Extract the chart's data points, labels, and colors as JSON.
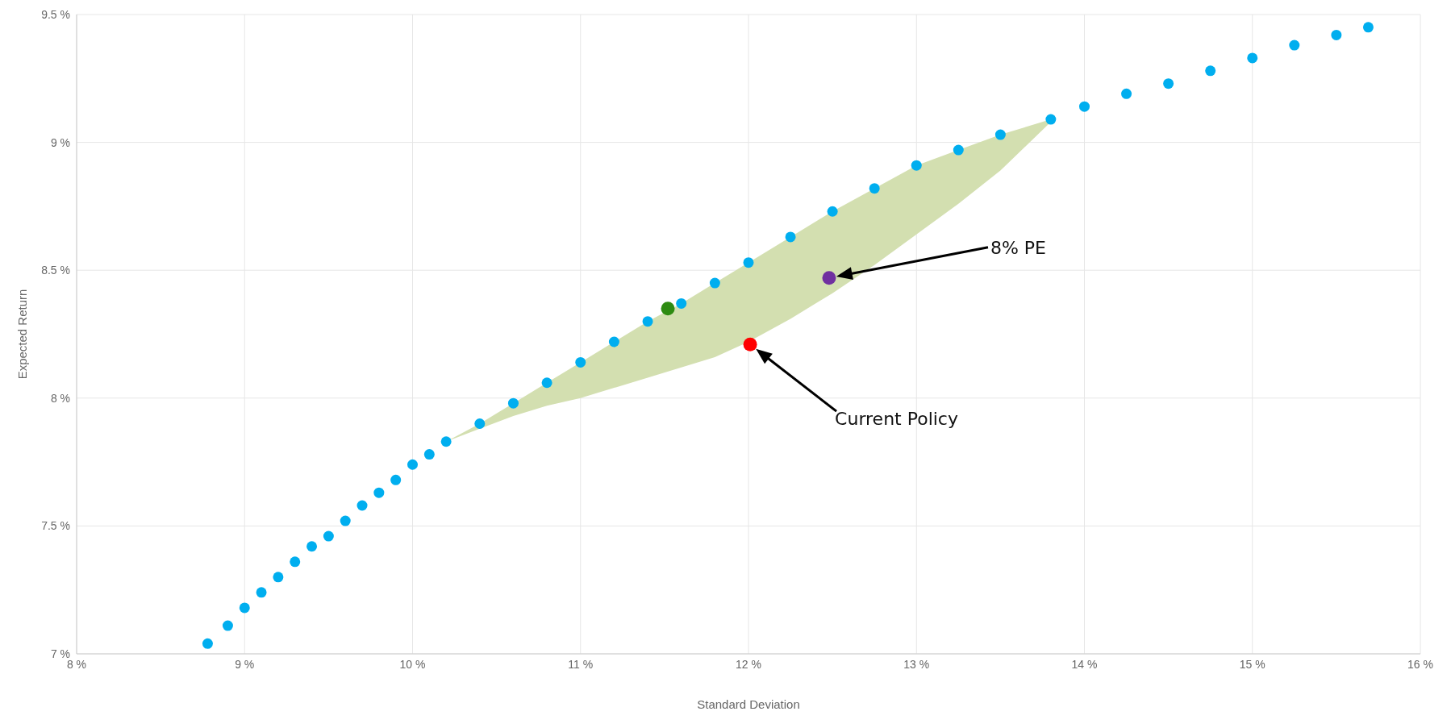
{
  "chart_data": {
    "type": "scatter",
    "xlabel": "Standard Deviation",
    "ylabel": "Expected Return",
    "xlim": [
      8,
      16
    ],
    "ylim": [
      7,
      9.5
    ],
    "xticks": [
      {
        "value": 8,
        "label": "8 %"
      },
      {
        "value": 9,
        "label": "9 %"
      },
      {
        "value": 10,
        "label": "10 %"
      },
      {
        "value": 11,
        "label": "11 %"
      },
      {
        "value": 12,
        "label": "12 %"
      },
      {
        "value": 13,
        "label": "13 %"
      },
      {
        "value": 14,
        "label": "14 %"
      },
      {
        "value": 15,
        "label": "15 %"
      },
      {
        "value": 16,
        "label": "16 %"
      }
    ],
    "yticks": [
      {
        "value": 7,
        "label": "7 %"
      },
      {
        "value": 7.5,
        "label": "7.5 %"
      },
      {
        "value": 8,
        "label": "8 %"
      },
      {
        "value": 8.5,
        "label": "8.5 %"
      },
      {
        "value": 9,
        "label": "9 %"
      },
      {
        "value": 9.5,
        "label": "9.5 %"
      }
    ],
    "grid": true,
    "marker": "circle",
    "series": [
      {
        "color": "#00aeef",
        "x": [
          8.78,
          8.9,
          9.0,
          9.1,
          9.2,
          9.3,
          9.4,
          9.5,
          9.6,
          9.7,
          9.8,
          9.9,
          10.0,
          10.1,
          10.2,
          10.4,
          10.6,
          10.8,
          11.0,
          11.2,
          11.4,
          11.6,
          11.8,
          12.0,
          12.25,
          12.5,
          12.75,
          13.0,
          13.25,
          13.5,
          13.8,
          14.0,
          14.25,
          14.5,
          14.75,
          15.0,
          15.25,
          15.5,
          15.69
        ],
        "values": [
          7.04,
          7.11,
          7.18,
          7.24,
          7.3,
          7.36,
          7.42,
          7.46,
          7.52,
          7.58,
          7.63,
          7.68,
          7.74,
          7.78,
          7.83,
          7.9,
          7.98,
          8.06,
          8.14,
          8.22,
          8.3,
          8.37,
          8.45,
          8.53,
          8.63,
          8.73,
          8.82,
          8.91,
          8.97,
          9.03,
          9.09,
          9.14,
          9.19,
          9.23,
          9.28,
          9.33,
          9.38,
          9.42,
          9.45
        ],
        "lower": [
          null,
          null,
          null,
          null,
          null,
          null,
          null,
          null,
          null,
          null,
          null,
          null,
          null,
          null,
          7.83,
          7.88,
          7.93,
          7.97,
          8.0,
          8.04,
          8.08,
          8.12,
          8.16,
          8.22,
          8.31,
          8.41,
          8.52,
          8.64,
          8.76,
          8.89,
          9.08,
          null,
          null,
          null,
          null,
          null,
          null,
          null,
          null
        ],
        "upper": [
          null,
          null,
          null,
          null,
          null,
          null,
          null,
          null,
          null,
          null,
          null,
          null,
          null,
          null,
          7.83,
          7.9,
          7.98,
          8.06,
          8.14,
          8.22,
          8.3,
          8.37,
          8.45,
          8.53,
          8.63,
          8.73,
          8.82,
          8.91,
          8.97,
          9.03,
          9.09,
          null,
          null,
          null,
          null,
          null,
          null,
          null,
          null
        ]
      },
      {
        "color": "#2e8b12",
        "x": [
          11.52
        ],
        "values": [
          8.35
        ]
      },
      {
        "name": "Current Policy",
        "color": "#ff0000",
        "x": [
          12.01
        ],
        "values": [
          8.21
        ]
      },
      {
        "name": "8% PE",
        "color": "#7030a0",
        "x": [
          12.48
        ],
        "values": [
          8.47
        ]
      }
    ]
  }
}
